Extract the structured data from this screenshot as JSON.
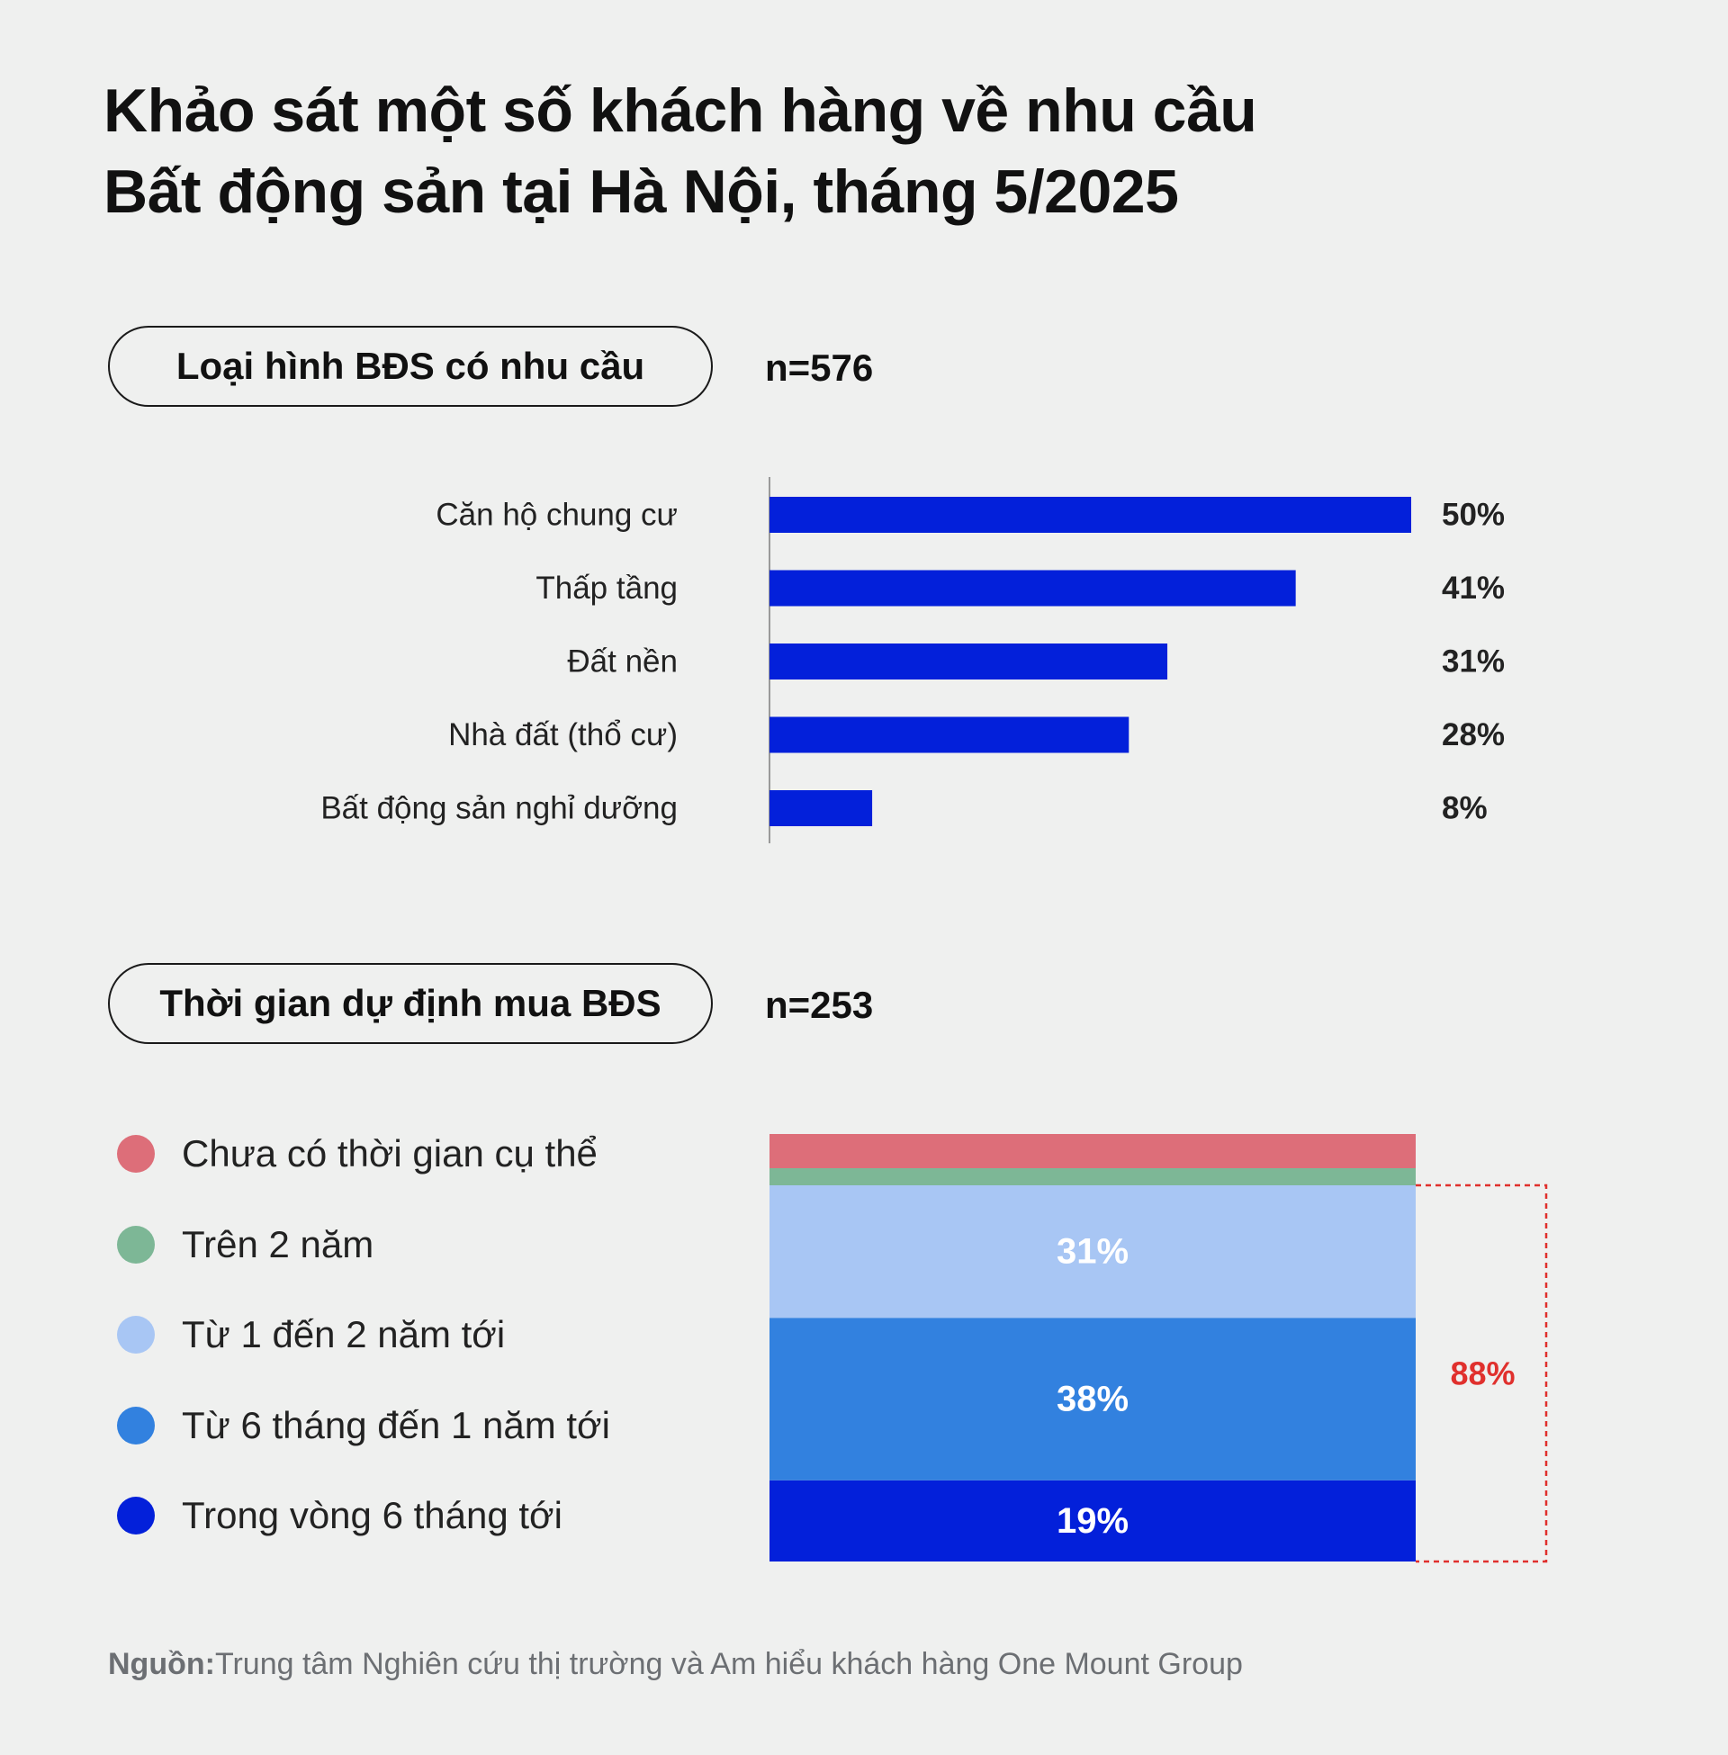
{
  "title": {
    "line1": "Khảo sát một số khách hàng về nhu cầu",
    "line2": "Bất động sản tại Hà Nội, tháng 5/2025"
  },
  "section1": {
    "label": "Loại hình BĐS có nhu cầu",
    "n": "n=576"
  },
  "section2": {
    "label": "Thời gian dự định mua BĐS",
    "n": "n=253"
  },
  "source": {
    "prefix": "Nguồn:",
    "text": "Trung tâm Nghiên cứu thị trường và Am hiểu khách hàng One Mount Group"
  },
  "chart_data": [
    {
      "type": "bar",
      "orientation": "horizontal",
      "categories": [
        "Căn hộ chung cư",
        "Thấp tầng",
        "Đất nền",
        "Nhà đất (thổ cư)",
        "Bất động sản nghỉ dưỡng"
      ],
      "values": [
        50,
        41,
        31,
        28,
        8
      ],
      "value_labels": [
        "50%",
        "41%",
        "31%",
        "28%",
        "8%"
      ],
      "unit": "%",
      "xlim": [
        0,
        50
      ],
      "grid": false,
      "color": "#0320da"
    },
    {
      "type": "bar",
      "orientation": "stacked-vertical",
      "series": [
        {
          "name": "Trong vòng 6 tháng tới",
          "value": 19,
          "label": "19%",
          "color": "#0320da"
        },
        {
          "name": "Từ 6 tháng đến 1 năm tới",
          "value": 38,
          "label": "38%",
          "color": "#3281df"
        },
        {
          "name": "Từ 1 đến 2 năm tới",
          "value": 31,
          "label": "31%",
          "color": "#a8c6f4"
        },
        {
          "name": "Trên 2 năm",
          "value": 4,
          "label": "",
          "color": "#7db796"
        },
        {
          "name": "Chưa có thời gian cụ thể",
          "value": 8,
          "label": "",
          "color": "#dd6e79"
        }
      ],
      "legend_order": [
        "Chưa có thời gian cụ thể",
        "Trên 2 năm",
        "Từ 1 đến 2 năm tới",
        "Từ 6 tháng đến 1 năm tới",
        "Trong vòng 6 tháng tới"
      ],
      "bracket_label": "88%",
      "bracket_color": "#e0302d",
      "ylim": [
        0,
        100
      ],
      "legend_position": "left"
    }
  ]
}
